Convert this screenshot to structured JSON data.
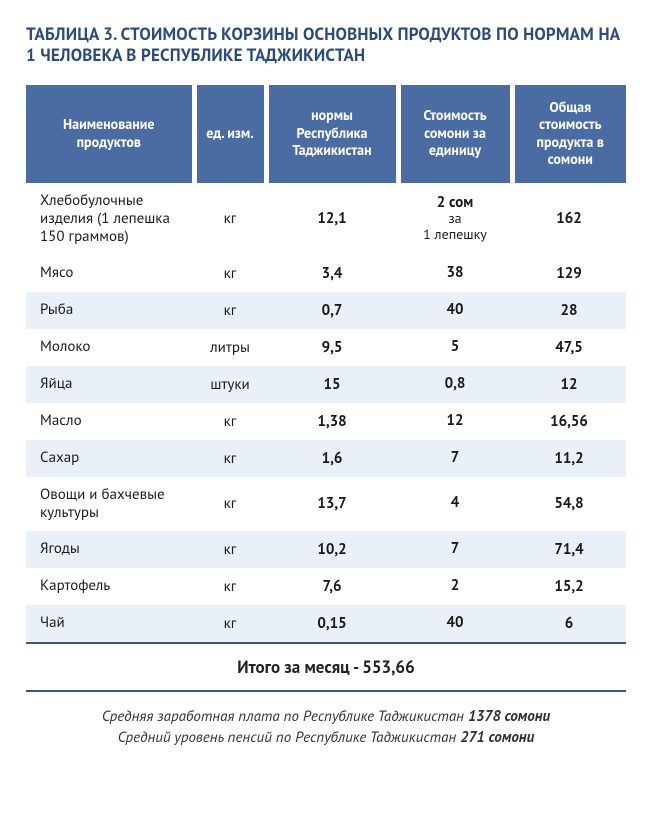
{
  "title": "ТАБЛИЦА 3. СТОИМОСТЬ КОРЗИНЫ ОСНОВНЫХ ПРОДУКТОВ ПО НОРМАМ НА 1 ЧЕЛОВЕКА В РЕСПУБЛИКЕ ТАДЖИКИСТАН",
  "table": {
    "type": "table",
    "header_bg": "#4b6ba3",
    "header_text_color": "#ffffff",
    "stripe_bg": "#eaf0f7",
    "plain_bg": "#ffffff",
    "border_color": "#3a5680",
    "title_color": "#2d4b7a",
    "font_family": "PT Sans, Arial, sans-serif",
    "header_fontsize": 14,
    "body_fontsize": 15,
    "col_widths_pct": [
      28,
      12,
      22,
      19,
      19
    ],
    "columns": [
      "Наименование продуктов",
      "ед. изм.",
      "нормы Республика Таджикистан",
      "Стоимость сомони за единицу",
      "Общая стоимость продукта в сомони"
    ],
    "rows": [
      {
        "name": "Хлебобулочные изделия (1 лепешка 150 граммов)",
        "unit": "кг",
        "norm": "12,1",
        "price_bold": "2 сом",
        "price_sub1": "за",
        "price_sub2": "1 лепешку",
        "total": "162",
        "stripe": false
      },
      {
        "name": "Мясо",
        "unit": "кг",
        "norm": "3,4",
        "price_bold": "38",
        "total": "129",
        "stripe": false
      },
      {
        "name": "Рыба",
        "unit": "кг",
        "norm": "0,7",
        "price_bold": "40",
        "total": "28",
        "stripe": true
      },
      {
        "name": "Молоко",
        "unit": "литры",
        "norm": "9,5",
        "price_bold": "5",
        "total": "47,5",
        "stripe": false
      },
      {
        "name": "Яйца",
        "unit": "штуки",
        "norm": "15",
        "price_bold": "0,8",
        "total": "12",
        "stripe": true
      },
      {
        "name": "Масло",
        "unit": "кг",
        "norm": "1,38",
        "price_bold": "12",
        "total": "16,56",
        "stripe": false
      },
      {
        "name": "Сахар",
        "unit": "кг",
        "norm": "1,6",
        "price_bold": "7",
        "total": "11,2",
        "stripe": true
      },
      {
        "name": "Овощи и бахчевые культуры",
        "unit": "кг",
        "norm": "13,7",
        "price_bold": "4",
        "total": "54,8",
        "stripe": false
      },
      {
        "name": "Ягоды",
        "unit": "кг",
        "norm": "10,2",
        "price_bold": "7",
        "total": "71,4",
        "stripe": true
      },
      {
        "name": "Картофель",
        "unit": "кг",
        "norm": "7,6",
        "price_bold": "2",
        "total": "15,2",
        "stripe": false
      },
      {
        "name": "Чай",
        "unit": "кг",
        "norm": "0,15",
        "price_bold": "40",
        "total": "6",
        "stripe": true
      }
    ],
    "total_label": "Итого за месяц - 553,66"
  },
  "footer": {
    "line1_prefix": "Средняя заработная плата по Республике Таджикистан ",
    "line1_value": "1378 сомони",
    "line2_prefix": "Средний уровень пенсий по Республике Таджикистан ",
    "line2_value": "271 сомони"
  }
}
